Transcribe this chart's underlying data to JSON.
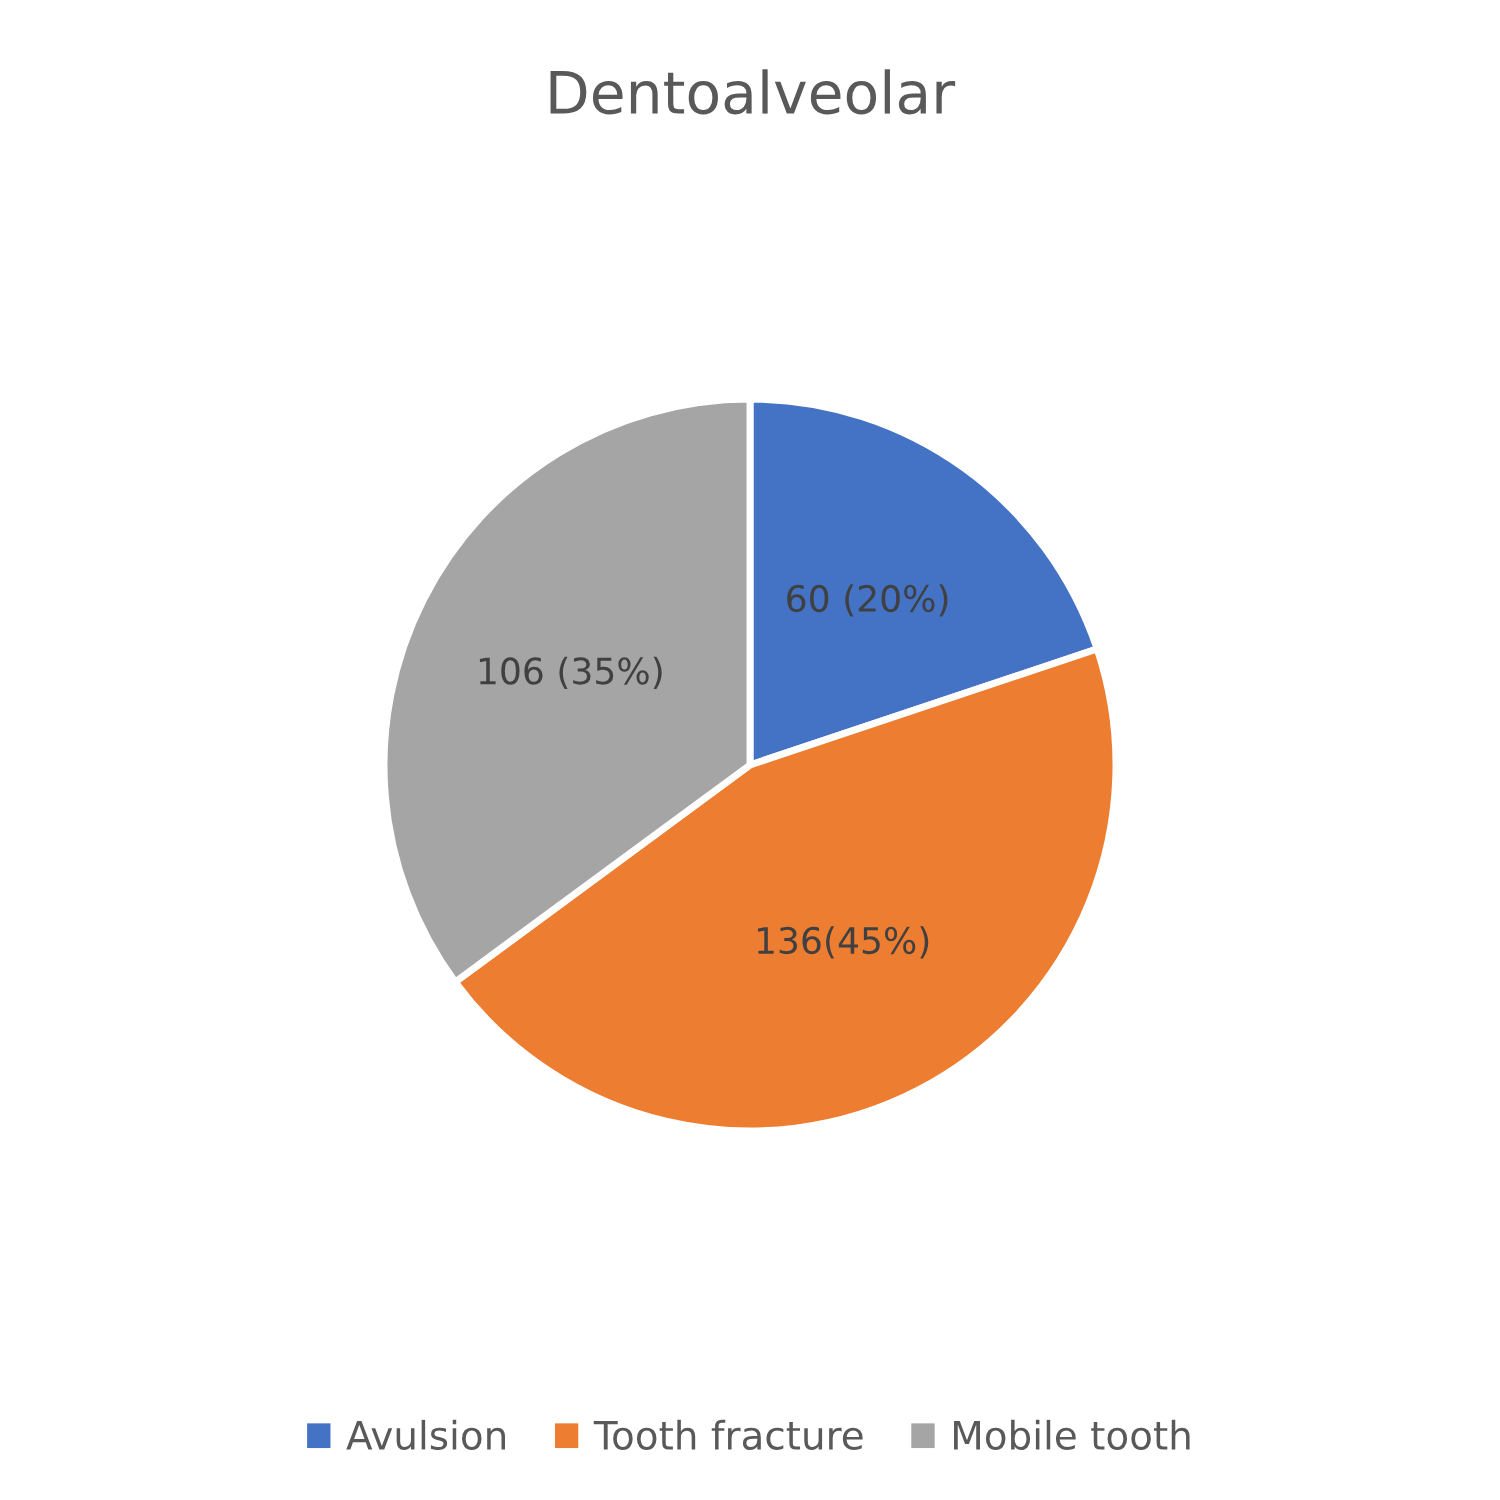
{
  "chart_data": {
    "type": "pie",
    "title": "Dentoalveolar",
    "categories": [
      "Avulsion",
      "Tooth fracture",
      "Mobile tooth"
    ],
    "values": [
      60,
      136,
      106
    ],
    "colors": [
      "#4472c4",
      "#ed7d31",
      "#a5a5a5"
    ],
    "value_labels": [
      "60 (20%)",
      "136(45%)",
      "106 (35%)"
    ],
    "legend": "bottom"
  }
}
